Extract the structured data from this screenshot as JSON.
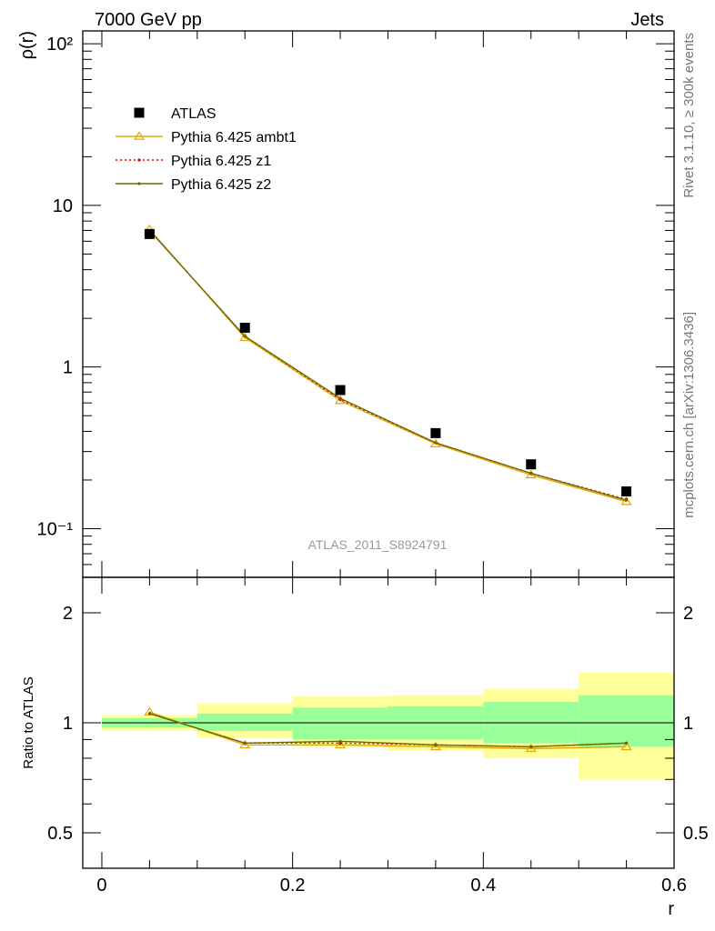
{
  "header": {
    "left": "7000 GeV pp",
    "right": "Jets"
  },
  "side_labels": {
    "top": "Rivet 3.1.10, ≥ 300k events",
    "bottom": "mcplots.cern.ch [arXiv:1306.3436]"
  },
  "watermark": "ATLAS_2011_S8924791",
  "colors": {
    "data": "#000000",
    "ambt1": "#e6a800",
    "z1": "#dd0000",
    "z2": "#6b6b00",
    "band_inner": "#99ff99",
    "band_outer": "#ffff99"
  },
  "chart_data": [
    {
      "type": "scatter",
      "name": "main",
      "ylabel": "ρ(r)",
      "yscale": "log",
      "xlim": [
        -0.02,
        0.6
      ],
      "ylim": [
        0.05,
        120
      ],
      "y_tick_labels": [
        "10⁻¹",
        "1",
        "10",
        "10²"
      ],
      "legend_position": "top-left",
      "x": [
        0.05,
        0.15,
        0.25,
        0.35,
        0.45,
        0.55
      ],
      "series": [
        {
          "name": "ATLAS",
          "style": "square-markers",
          "values": [
            6.65,
            1.75,
            0.72,
            0.39,
            0.25,
            0.17
          ]
        },
        {
          "name": "Pythia 6.425 ambt1",
          "style": "line-open-triangle",
          "values": [
            7.1,
            1.52,
            0.62,
            0.335,
            0.215,
            0.147
          ]
        },
        {
          "name": "Pythia 6.425 z1",
          "style": "dotted-line",
          "values": [
            7.0,
            1.55,
            0.63,
            0.34,
            0.22,
            0.152
          ]
        },
        {
          "name": "Pythia 6.425 z2",
          "style": "line-small-dot",
          "values": [
            7.0,
            1.55,
            0.64,
            0.34,
            0.22,
            0.15
          ]
        }
      ]
    },
    {
      "type": "line",
      "name": "ratio",
      "xlabel": "r",
      "ylabel": "Ratio to ATLAS",
      "yscale": "log",
      "xlim": [
        -0.02,
        0.6
      ],
      "ylim": [
        0.4,
        2.5
      ],
      "x_tick_labels": [
        "0",
        "0.2",
        "0.4",
        "0.6"
      ],
      "y_tick_labels": [
        "0.5",
        "1",
        "2"
      ],
      "bands": {
        "bin_edges": [
          0.0,
          0.1,
          0.2,
          0.3,
          0.4,
          0.5,
          0.6
        ],
        "inner_low": [
          0.97,
          0.95,
          0.9,
          0.9,
          0.88,
          0.86
        ],
        "inner_high": [
          1.03,
          1.06,
          1.1,
          1.11,
          1.14,
          1.19
        ],
        "outer_low": [
          0.95,
          0.91,
          0.86,
          0.84,
          0.8,
          0.7
        ],
        "outer_high": [
          1.05,
          1.13,
          1.18,
          1.19,
          1.24,
          1.37
        ]
      },
      "x": [
        0.05,
        0.15,
        0.25,
        0.35,
        0.45,
        0.55
      ],
      "series": [
        {
          "name": "Pythia 6.425 ambt1",
          "values": [
            1.07,
            0.87,
            0.87,
            0.86,
            0.85,
            0.86
          ]
        },
        {
          "name": "Pythia 6.425 z1",
          "values": [
            1.06,
            0.88,
            0.88,
            0.87,
            0.86,
            0.88
          ]
        },
        {
          "name": "Pythia 6.425 z2",
          "values": [
            1.06,
            0.88,
            0.89,
            0.87,
            0.86,
            0.88
          ]
        }
      ]
    }
  ]
}
